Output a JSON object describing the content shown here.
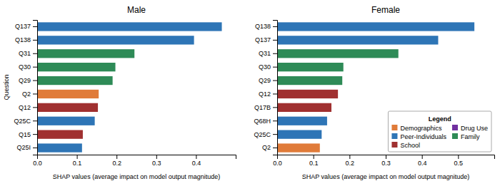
{
  "chart_data": [
    {
      "type": "bar",
      "orientation": "horizontal",
      "title": "Male",
      "categories": [
        "Q137",
        "Q138",
        "Q31",
        "Q30",
        "Q29",
        "Q2",
        "Q12",
        "Q25C",
        "Q15",
        "Q25I"
      ],
      "values": [
        0.465,
        0.395,
        0.245,
        0.197,
        0.19,
        0.155,
        0.153,
        0.145,
        0.115,
        0.113
      ],
      "colors": [
        "#2e75b6",
        "#2e75b6",
        "#2e8b57",
        "#2e8b57",
        "#2e8b57",
        "#e07b39",
        "#a03030",
        "#2e75b6",
        "#a03030",
        "#2e75b6"
      ],
      "x_label": "SHAP values (average impact on model output magnitude)",
      "y_label": "Question",
      "xlim": [
        0,
        0.5
      ],
      "xticks": [
        {
          "value": 0,
          "label": "0.0"
        },
        0.1,
        0.2,
        0.3,
        0.4
      ]
    },
    {
      "type": "bar",
      "orientation": "horizontal",
      "title": "Female",
      "categories": [
        "Q138",
        "Q137",
        "Q31",
        "Q30",
        "Q29",
        "Q12",
        "Q17B",
        "Q68H",
        "Q25C",
        "Q2"
      ],
      "values": [
        0.545,
        0.445,
        0.335,
        0.183,
        0.18,
        0.168,
        0.15,
        0.138,
        0.123,
        0.118
      ],
      "colors": [
        "#2e75b6",
        "#2e75b6",
        "#2e8b57",
        "#2e8b57",
        "#2e8b57",
        "#a03030",
        "#a03030",
        "#2e75b6",
        "#2e75b6",
        "#e07b39"
      ],
      "x_label": "SHAP values (average impact on model output magnitude)",
      "xlim": [
        0,
        0.6
      ],
      "xticks": [
        {
          "value": 0,
          "label": "0.0"
        },
        0.1,
        0.2,
        0.3,
        0.4,
        0.5
      ],
      "legend": "lower right",
      "legend_title": "Legend",
      "legend_entries": [
        {
          "name": "Demographics",
          "color": "#e07b39"
        },
        {
          "name": "Peer-Individuals",
          "color": "#2e75b6"
        },
        {
          "name": "School",
          "color": "#a03030"
        },
        {
          "name": "Drug Use",
          "color": "#7030a0"
        },
        {
          "name": "Family",
          "color": "#2e8b57"
        }
      ]
    }
  ]
}
